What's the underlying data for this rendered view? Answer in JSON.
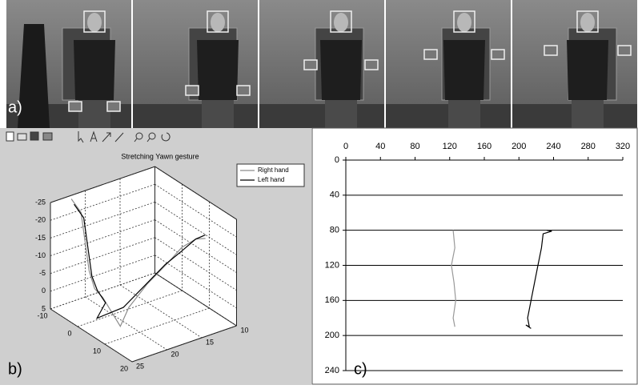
{
  "figure_labels": {
    "a": "a)",
    "b": "b)",
    "c": "c)"
  },
  "chart_data": [
    {
      "type": "line3d",
      "title": "Stretching Yawn gesture",
      "xlim": [
        -10,
        20
      ],
      "ylim": [
        10,
        25
      ],
      "zlim": [
        -25,
        5
      ],
      "xticks": [
        -10,
        0,
        10,
        20
      ],
      "yticks": [
        10,
        15,
        20,
        25
      ],
      "zticks": [
        -25,
        -20,
        -15,
        -10,
        -5,
        0,
        5
      ],
      "grid": true,
      "legend": "upper right",
      "series": [
        {
          "name": "Right hand",
          "color": "#8c8c8c",
          "x": [
            -10,
            -9,
            -8,
            -7,
            -6,
            -4,
            -1,
            8,
            6,
            5,
            5,
            5,
            5,
            6
          ],
          "y": [
            22,
            21,
            21,
            21,
            21,
            21,
            21,
            22,
            20,
            17,
            14,
            12,
            10,
            9
          ],
          "z": [
            -24,
            -20,
            -15,
            -10,
            -5,
            -1,
            0,
            3,
            0,
            -4,
            -8,
            -11,
            -12,
            -12
          ]
        },
        {
          "name": "Left hand",
          "color": "#000000",
          "x": [
            -9,
            -8,
            -7,
            -6,
            -5,
            -3,
            0,
            2,
            4,
            4,
            4,
            5,
            5,
            6
          ],
          "y": [
            22,
            21,
            21,
            21,
            21,
            21,
            21,
            23,
            20,
            17,
            14,
            12,
            10,
            9
          ],
          "z": [
            -23,
            -19,
            -14,
            -9,
            -4,
            -1,
            1,
            3,
            1,
            -3,
            -7,
            -10,
            -12,
            -13
          ]
        }
      ]
    },
    {
      "type": "line",
      "xlim": [
        0,
        320
      ],
      "ylim": [
        0,
        240
      ],
      "xticks": [
        0,
        40,
        80,
        120,
        160,
        200,
        240,
        280,
        320
      ],
      "yticks": [
        0,
        40,
        80,
        120,
        160,
        200,
        240
      ],
      "y_inverted": true,
      "x_axis_position": "top",
      "grid": true,
      "series": [
        {
          "color": "#999999",
          "x": [
            124,
            126,
            122,
            125,
            127,
            124,
            126
          ],
          "values": [
            80,
            100,
            120,
            140,
            160,
            180,
            190
          ]
        },
        {
          "color": "#000000",
          "x": [
            232,
            238,
            228,
            226,
            222,
            218,
            214,
            210,
            212,
            208,
            214
          ],
          "values": [
            80,
            81,
            84,
            100,
            120,
            140,
            160,
            180,
            190,
            188,
            192
          ]
        }
      ]
    }
  ]
}
